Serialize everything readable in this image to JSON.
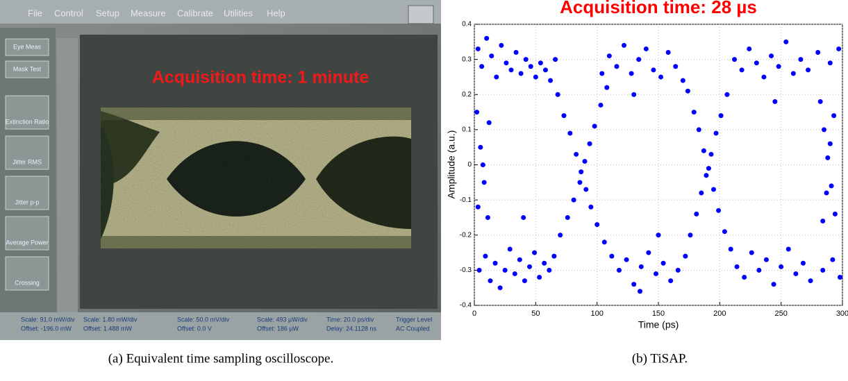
{
  "photo": {
    "menu": [
      "File",
      "Control",
      "Setup",
      "Measure",
      "Calibrate",
      "Utilities",
      "Help"
    ],
    "buttons": [
      "Eye Meas",
      "Mask Test",
      "Extinction Ratio",
      "Jitter RMS",
      "Jitter p-p",
      "Average Power",
      "Crossing"
    ],
    "overlay": "Acquisition time: 1 minute",
    "status": [
      "Scale: 91.0 mW/div",
      "Offset: -196.0 mW",
      "Scale: 1.80 mW/div",
      "Offset: 1.488 mW",
      "Scale: 50.0 mV/div",
      "Offset: 0.0 V",
      "Scale: 493 µW/div",
      "Offset: 186 µW",
      "Time: 20.0 ps/div",
      "Delay: 24.1128 ns",
      "Trigger Level",
      "AC Coupled"
    ]
  },
  "chart_data": {
    "type": "scatter",
    "title": "Acquisition time: 28 µs",
    "xlabel": "Time (ps)",
    "ylabel": "Amplitude (a.u.)",
    "color": "#0000ff",
    "grid": true,
    "xlim": [
      0,
      300
    ],
    "xticks": [
      0,
      50,
      100,
      150,
      200,
      250,
      300
    ],
    "ylim": [
      -0.4,
      0.4
    ],
    "yticks": [
      -0.4,
      -0.3,
      -0.2,
      -0.1,
      0,
      0.1,
      0.2,
      0.3,
      0.4
    ],
    "x": [
      3,
      6,
      10,
      14,
      18,
      22,
      26,
      30,
      34,
      38,
      42,
      46,
      50,
      54,
      58,
      62,
      66,
      104,
      110,
      116,
      122,
      128,
      134,
      140,
      146,
      152,
      158,
      164,
      170,
      212,
      218,
      224,
      230,
      236,
      242,
      248,
      254,
      260,
      266,
      272,
      280,
      290,
      297,
      4,
      9,
      13,
      17,
      21,
      25,
      29,
      33,
      37,
      41,
      45,
      49,
      53,
      57,
      61,
      65,
      118,
      124,
      130,
      136,
      142,
      148,
      154,
      160,
      166,
      172,
      214,
      220,
      226,
      232,
      238,
      244,
      250,
      256,
      262,
      268,
      274,
      284,
      292,
      298,
      68,
      73,
      78,
      83,
      87,
      91,
      95,
      100,
      106,
      112,
      70,
      76,
      81,
      86,
      90,
      94,
      98,
      103,
      108,
      174,
      179,
      183,
      187,
      191,
      195,
      199,
      204,
      209,
      176,
      181,
      185,
      189,
      193,
      197,
      201,
      206,
      282,
      285,
      288,
      291,
      294,
      284,
      287,
      290,
      293,
      2,
      5,
      8,
      11,
      3,
      7,
      12,
      40,
      130,
      150,
      245,
      135
    ],
    "values": [
      0.33,
      0.28,
      0.36,
      0.31,
      0.25,
      0.34,
      0.29,
      0.27,
      0.32,
      0.26,
      0.3,
      0.28,
      0.25,
      0.29,
      0.27,
      0.24,
      0.3,
      0.26,
      0.31,
      0.28,
      0.34,
      0.26,
      0.3,
      0.33,
      0.27,
      0.25,
      0.32,
      0.28,
      0.24,
      0.3,
      0.27,
      0.33,
      0.29,
      0.25,
      0.31,
      0.28,
      0.35,
      0.26,
      0.3,
      0.27,
      0.32,
      0.29,
      0.33,
      -0.3,
      -0.26,
      -0.33,
      -0.28,
      -0.35,
      -0.3,
      -0.24,
      -0.31,
      -0.27,
      -0.33,
      -0.29,
      -0.25,
      -0.32,
      -0.28,
      -0.3,
      -0.26,
      -0.3,
      -0.27,
      -0.34,
      -0.29,
      -0.25,
      -0.31,
      -0.28,
      -0.33,
      -0.3,
      -0.26,
      -0.29,
      -0.32,
      -0.25,
      -0.3,
      -0.27,
      -0.34,
      -0.29,
      -0.24,
      -0.31,
      -0.28,
      -0.33,
      -0.3,
      -0.27,
      -0.32,
      0.2,
      0.14,
      0.09,
      0.03,
      -0.02,
      -0.07,
      -0.12,
      -0.17,
      -0.22,
      -0.26,
      -0.2,
      -0.15,
      -0.1,
      -0.05,
      0.01,
      0.06,
      0.11,
      0.17,
      0.22,
      0.21,
      0.15,
      0.1,
      0.04,
      -0.01,
      -0.07,
      -0.13,
      -0.19,
      -0.24,
      -0.2,
      -0.14,
      -0.08,
      -0.03,
      0.03,
      0.09,
      0.14,
      0.2,
      0.18,
      0.1,
      0.02,
      -0.06,
      -0.14,
      -0.16,
      -0.08,
      0.06,
      0.14,
      0.15,
      0.05,
      -0.05,
      -0.15,
      -0.12,
      0,
      0.12,
      -0.15,
      0.2,
      -0.2,
      0.18,
      -0.36
    ]
  },
  "captions": [
    "(a) Equivalent time sampling oscilloscope.",
    "(b) TiSAP."
  ]
}
